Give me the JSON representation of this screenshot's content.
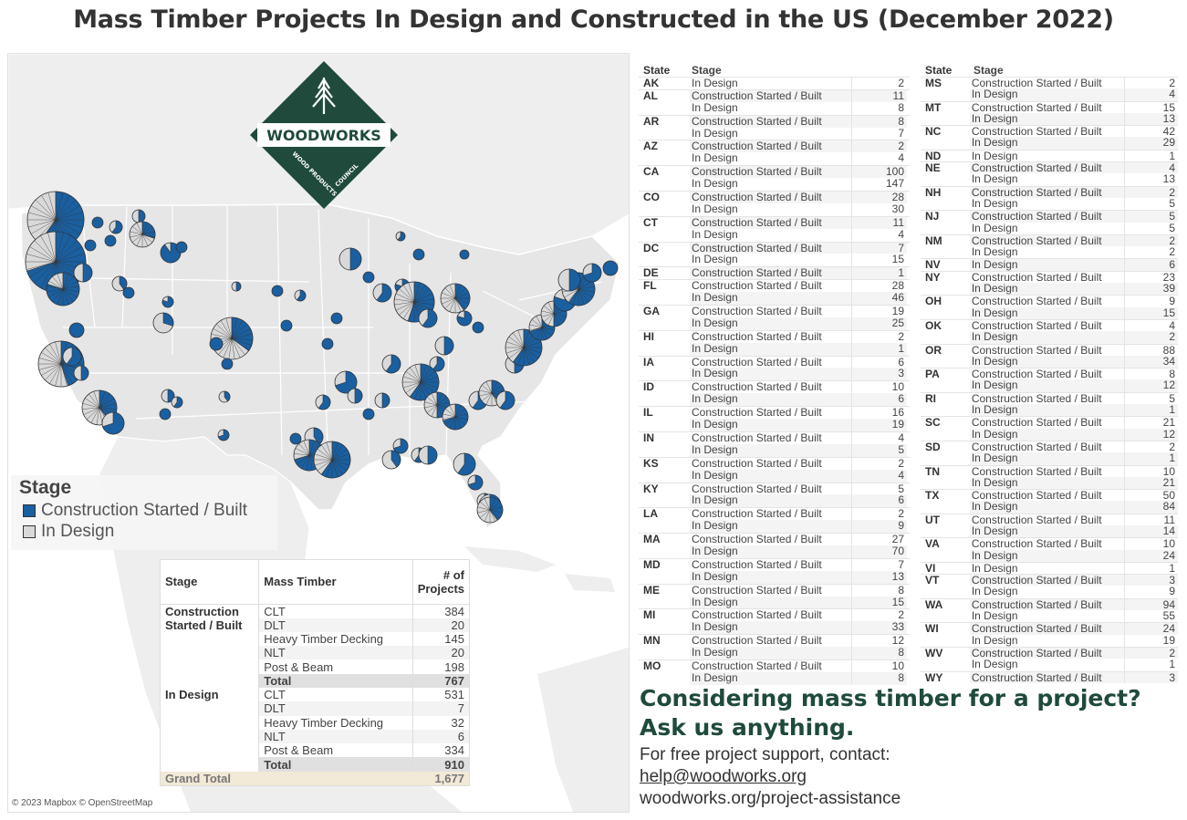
{
  "title": "Mass Timber Projects In Design and Constructed in the US (December 2022)",
  "colors": {
    "built": "#1a5fa0",
    "design": "#d9d9d9",
    "land": "#e6e6e6",
    "water": "#ffffff",
    "brand_green": "#1f4a3c"
  },
  "logo": {
    "name": "WOODWORKS",
    "tagline": "WOOD PRODUCTS COUNCIL"
  },
  "legend": {
    "title": "Stage",
    "items": [
      {
        "label": "Construction Started / Built",
        "color": "#1a5fa0"
      },
      {
        "label": "In Design",
        "color": "#d9d9d9"
      }
    ]
  },
  "summary": {
    "headers": {
      "stage": "Stage",
      "mass_timber": "Mass Timber",
      "count": "# of Projects"
    },
    "groups": [
      {
        "stage": "Construction Started / Built",
        "rows": [
          {
            "type": "CLT",
            "count": "384"
          },
          {
            "type": "DLT",
            "count": "20"
          },
          {
            "type": "Heavy Timber Decking",
            "count": "145"
          },
          {
            "type": "NLT",
            "count": "20"
          },
          {
            "type": "Post & Beam",
            "count": "198"
          }
        ],
        "total_label": "Total",
        "total": "767"
      },
      {
        "stage": "In Design",
        "rows": [
          {
            "type": "CLT",
            "count": "531"
          },
          {
            "type": "DLT",
            "count": "7"
          },
          {
            "type": "Heavy Timber Decking",
            "count": "32"
          },
          {
            "type": "NLT",
            "count": "6"
          },
          {
            "type": "Post & Beam",
            "count": "334"
          }
        ],
        "total_label": "Total",
        "total": "910"
      }
    ],
    "grand_total_label": "Grand Total",
    "grand_total": "1,677"
  },
  "copyright": "© 2023 Mapbox © OpenStreetMap",
  "state_table_headers": {
    "state": "State",
    "stage": "Stage"
  },
  "state_table_left": [
    [
      "AK",
      "In Design",
      "2"
    ],
    [
      "AL",
      "Construction Started / Built",
      "11"
    ],
    [
      "",
      "In Design",
      "8"
    ],
    [
      "AR",
      "Construction Started / Built",
      "8"
    ],
    [
      "",
      "In Design",
      "7"
    ],
    [
      "AZ",
      "Construction Started / Built",
      "2"
    ],
    [
      "",
      "In Design",
      "4"
    ],
    [
      "CA",
      "Construction Started / Built",
      "100"
    ],
    [
      "",
      "In Design",
      "147"
    ],
    [
      "CO",
      "Construction Started / Built",
      "28"
    ],
    [
      "",
      "In Design",
      "30"
    ],
    [
      "CT",
      "Construction Started / Built",
      "11"
    ],
    [
      "",
      "In Design",
      "4"
    ],
    [
      "DC",
      "Construction Started / Built",
      "7"
    ],
    [
      "",
      "In Design",
      "15"
    ],
    [
      "DE",
      "Construction Started / Built",
      "1"
    ],
    [
      "FL",
      "Construction Started / Built",
      "28"
    ],
    [
      "",
      "In Design",
      "46"
    ],
    [
      "GA",
      "Construction Started / Built",
      "19"
    ],
    [
      "",
      "In Design",
      "25"
    ],
    [
      "HI",
      "Construction Started / Built",
      "2"
    ],
    [
      "",
      "In Design",
      "1"
    ],
    [
      "IA",
      "Construction Started / Built",
      "6"
    ],
    [
      "",
      "In Design",
      "3"
    ],
    [
      "ID",
      "Construction Started / Built",
      "10"
    ],
    [
      "",
      "In Design",
      "6"
    ],
    [
      "IL",
      "Construction Started / Built",
      "16"
    ],
    [
      "",
      "In Design",
      "19"
    ],
    [
      "IN",
      "Construction Started / Built",
      "4"
    ],
    [
      "",
      "In Design",
      "5"
    ],
    [
      "KS",
      "Construction Started / Built",
      "2"
    ],
    [
      "",
      "In Design",
      "4"
    ],
    [
      "KY",
      "Construction Started / Built",
      "5"
    ],
    [
      "",
      "In Design",
      "6"
    ],
    [
      "LA",
      "Construction Started / Built",
      "2"
    ],
    [
      "",
      "In Design",
      "9"
    ],
    [
      "MA",
      "Construction Started / Built",
      "27"
    ],
    [
      "",
      "In Design",
      "70"
    ],
    [
      "MD",
      "Construction Started / Built",
      "7"
    ],
    [
      "",
      "In Design",
      "13"
    ],
    [
      "ME",
      "Construction Started / Built",
      "8"
    ],
    [
      "",
      "In Design",
      "15"
    ],
    [
      "MI",
      "Construction Started / Built",
      "2"
    ],
    [
      "",
      "In Design",
      "33"
    ],
    [
      "MN",
      "Construction Started / Built",
      "12"
    ],
    [
      "",
      "In Design",
      "8"
    ],
    [
      "MO",
      "Construction Started / Built",
      "10"
    ],
    [
      "",
      "In Design",
      "8"
    ]
  ],
  "state_table_right": [
    [
      "MS",
      "Construction Started / Built",
      "2"
    ],
    [
      "",
      "In Design",
      "4"
    ],
    [
      "MT",
      "Construction Started / Built",
      "15"
    ],
    [
      "",
      "In Design",
      "13"
    ],
    [
      "NC",
      "Construction Started / Built",
      "42"
    ],
    [
      "",
      "In Design",
      "29"
    ],
    [
      "ND",
      "In Design",
      "1"
    ],
    [
      "NE",
      "Construction Started / Built",
      "4"
    ],
    [
      "",
      "In Design",
      "13"
    ],
    [
      "NH",
      "Construction Started / Built",
      "2"
    ],
    [
      "",
      "In Design",
      "5"
    ],
    [
      "NJ",
      "Construction Started / Built",
      "5"
    ],
    [
      "",
      "In Design",
      "5"
    ],
    [
      "NM",
      "Construction Started / Built",
      "2"
    ],
    [
      "",
      "In Design",
      "2"
    ],
    [
      "NV",
      "In Design",
      "6"
    ],
    [
      "NY",
      "Construction Started / Built",
      "23"
    ],
    [
      "",
      "In Design",
      "39"
    ],
    [
      "OH",
      "Construction Started / Built",
      "9"
    ],
    [
      "",
      "In Design",
      "15"
    ],
    [
      "OK",
      "Construction Started / Built",
      "4"
    ],
    [
      "",
      "In Design",
      "2"
    ],
    [
      "OR",
      "Construction Started / Built",
      "88"
    ],
    [
      "",
      "In Design",
      "34"
    ],
    [
      "PA",
      "Construction Started / Built",
      "8"
    ],
    [
      "",
      "In Design",
      "12"
    ],
    [
      "RI",
      "Construction Started / Built",
      "5"
    ],
    [
      "",
      "In Design",
      "1"
    ],
    [
      "SC",
      "Construction Started / Built",
      "21"
    ],
    [
      "",
      "In Design",
      "12"
    ],
    [
      "SD",
      "Construction Started / Built",
      "2"
    ],
    [
      "",
      "In Design",
      "1"
    ],
    [
      "TN",
      "Construction Started / Built",
      "10"
    ],
    [
      "",
      "In Design",
      "21"
    ],
    [
      "TX",
      "Construction Started / Built",
      "50"
    ],
    [
      "",
      "In Design",
      "84"
    ],
    [
      "UT",
      "Construction Started / Built",
      "11"
    ],
    [
      "",
      "In Design",
      "14"
    ],
    [
      "VA",
      "Construction Started / Built",
      "10"
    ],
    [
      "",
      "In Design",
      "24"
    ],
    [
      "VI",
      "In Design",
      "1"
    ],
    [
      "VT",
      "Construction Started / Built",
      "3"
    ],
    [
      "",
      "In Design",
      "9"
    ],
    [
      "WA",
      "Construction Started / Built",
      "94"
    ],
    [
      "",
      "In Design",
      "55"
    ],
    [
      "WI",
      "Construction Started / Built",
      "24"
    ],
    [
      "",
      "In Design",
      "19"
    ],
    [
      "WV",
      "Construction Started / Built",
      "2"
    ],
    [
      "",
      "In Design",
      "1"
    ],
    [
      "WY",
      "Construction Started / Built",
      "3"
    ]
  ],
  "cta": {
    "headline_1": "Considering mass timber for a project?",
    "headline_2": "Ask us anything.",
    "text": "For free project support, contact:",
    "email": "help@woodworks.org",
    "link": "woodworks.org/project-assistance"
  }
}
